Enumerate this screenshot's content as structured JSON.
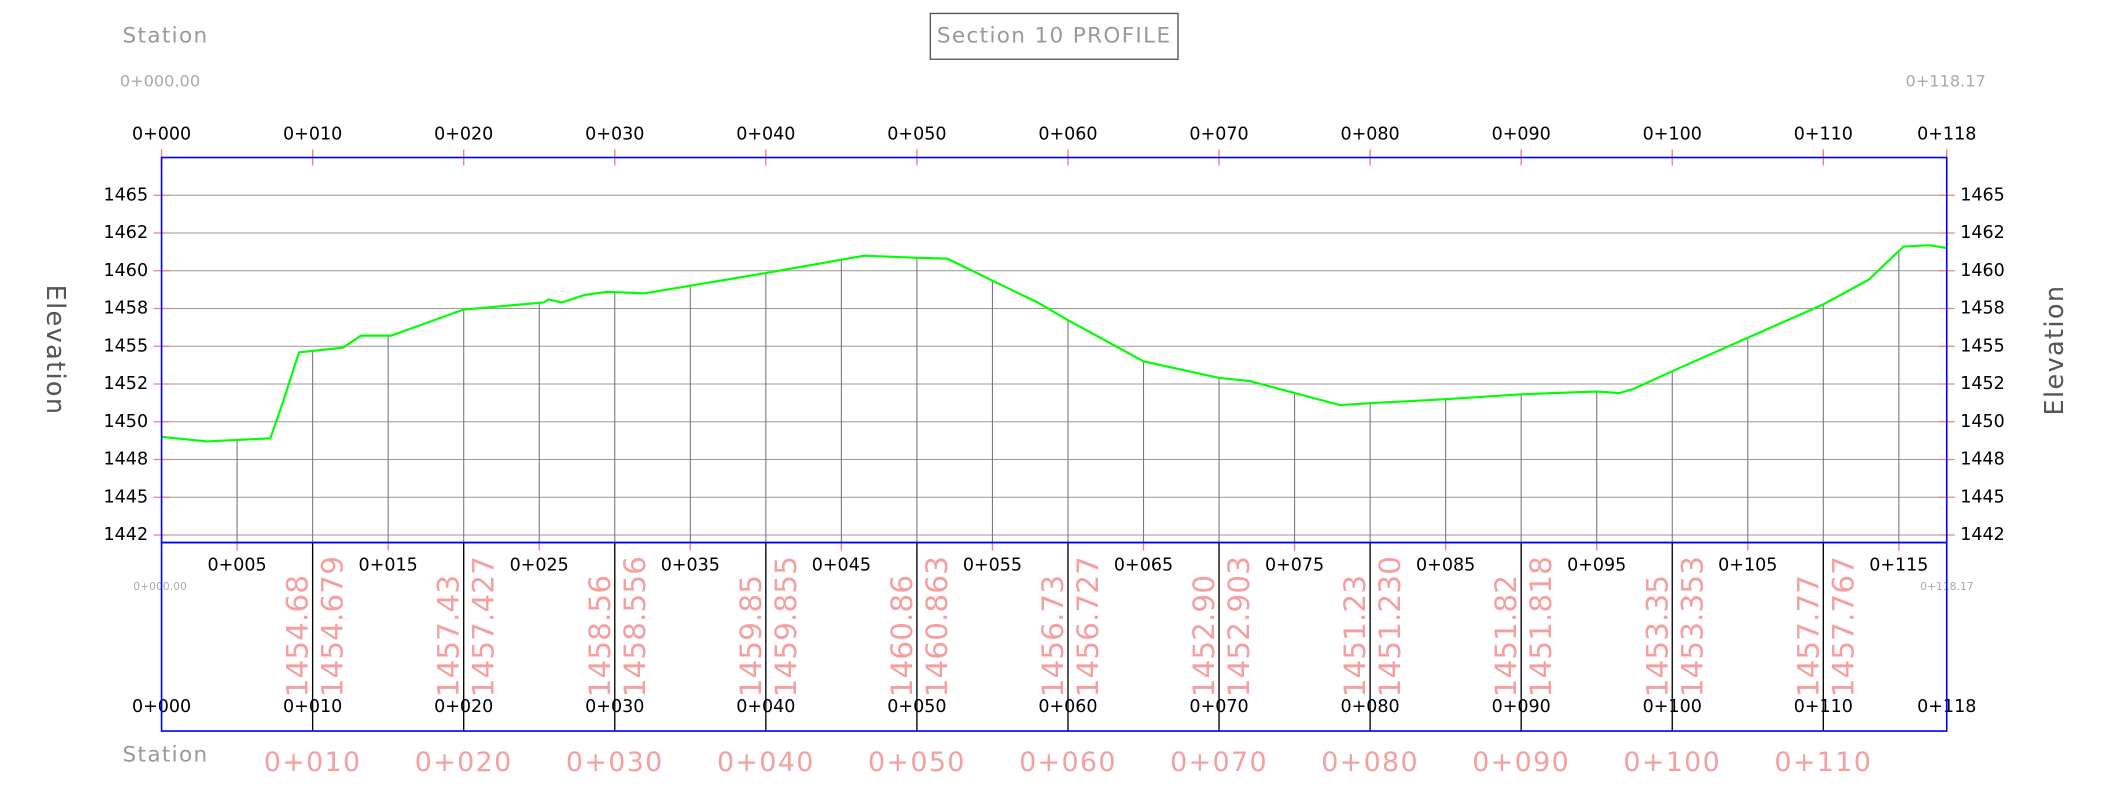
{
  "chart_data": {
    "type": "line",
    "title": "Section 10 PROFILE",
    "x_label": "Station",
    "y_label": "Elevation",
    "start_label": "0+000.00",
    "end_label": "0+118.17",
    "xlim": [
      0,
      118.17
    ],
    "ylim": [
      1442,
      1467.5
    ],
    "xticks": [
      {
        "value": 0,
        "label": "0+000"
      },
      {
        "value": 10,
        "label": "0+010"
      },
      {
        "value": 20,
        "label": "0+020"
      },
      {
        "value": 30,
        "label": "0+030"
      },
      {
        "value": 40,
        "label": "0+040"
      },
      {
        "value": 50,
        "label": "0+050"
      },
      {
        "value": 60,
        "label": "0+060"
      },
      {
        "value": 70,
        "label": "0+070"
      },
      {
        "value": 80,
        "label": "0+080"
      },
      {
        "value": 90,
        "label": "0+090"
      },
      {
        "value": 100,
        "label": "0+100"
      },
      {
        "value": 110,
        "label": "0+110"
      },
      {
        "value": 118.17,
        "label": "0+118"
      }
    ],
    "minor_xticks": [
      {
        "value": 5,
        "label": "0+005"
      },
      {
        "value": 15,
        "label": "0+015"
      },
      {
        "value": 25,
        "label": "0+025"
      },
      {
        "value": 35,
        "label": "0+035"
      },
      {
        "value": 45,
        "label": "0+045"
      },
      {
        "value": 55,
        "label": "0+055"
      },
      {
        "value": 65,
        "label": "0+065"
      },
      {
        "value": 75,
        "label": "0+075"
      },
      {
        "value": 85,
        "label": "0+085"
      },
      {
        "value": 95,
        "label": "0+095"
      },
      {
        "value": 105,
        "label": "0+105"
      },
      {
        "value": 115,
        "label": "0+115"
      }
    ],
    "yticks": [
      {
        "value": 1442.5,
        "label": "1442"
      },
      1445,
      {
        "value": 1447.5,
        "label": "1448"
      },
      1450,
      {
        "value": 1452.5,
        "label": "1452"
      },
      1455,
      {
        "value": 1457.5,
        "label": "1458"
      },
      1460,
      {
        "value": 1462.5,
        "label": "1462"
      },
      1465
    ],
    "grid": true,
    "x": [
      0,
      3,
      7.2,
      8,
      9.1,
      12,
      13.2,
      15.2,
      20,
      25.3,
      25.6,
      26.5,
      28,
      29.5,
      32,
      40,
      46.5,
      50,
      52,
      55.5,
      58,
      60,
      65,
      70,
      72,
      78,
      80,
      85,
      90,
      95,
      96.5,
      97.5,
      100,
      110,
      113,
      115.3,
      117,
      118.17
    ],
    "series": [
      {
        "color": "#00ff00",
        "values": [
          1449.0,
          1448.7,
          1448.9,
          1451.2,
          1454.6,
          1454.9,
          1455.7,
          1455.7,
          1457.43,
          1457.9,
          1458.1,
          1457.9,
          1458.4,
          1458.6,
          1458.5,
          1459.85,
          1461.0,
          1460.86,
          1460.8,
          1459.1,
          1457.9,
          1456.73,
          1454.0,
          1452.9,
          1452.7,
          1451.1,
          1451.23,
          1451.5,
          1451.82,
          1452.0,
          1451.9,
          1452.2,
          1453.35,
          1457.77,
          1459.4,
          1461.6,
          1461.7,
          1461.5
        ]
      }
    ],
    "elevation_labels": [
      [
        "1454.68",
        "1454.679"
      ],
      [
        "1457.43",
        "1457.427"
      ],
      [
        "1458.56",
        "1458.556"
      ],
      [
        "1459.85",
        "1459.855"
      ],
      [
        "1460.86",
        "1460.863"
      ],
      [
        "1456.73",
        "1456.727"
      ],
      [
        "1452.90",
        "1452.903"
      ],
      [
        "1451.23",
        "1451.230"
      ],
      [
        "1451.82",
        "1451.818"
      ],
      [
        "1453.35",
        "1453.353"
      ],
      [
        "1457.77",
        "1457.767"
      ]
    ]
  }
}
